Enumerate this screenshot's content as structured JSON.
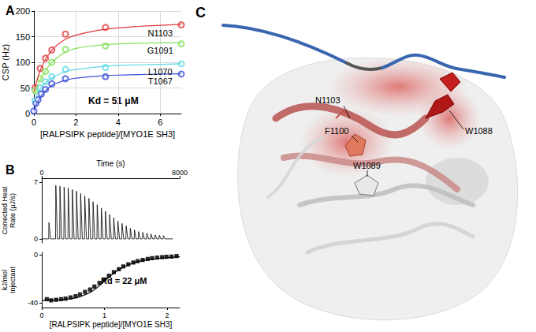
{
  "chart_data": [
    {
      "type": "scatter",
      "title": "A",
      "xlabel": "[RALPSIPK peptide]/[MYO1E SH3]",
      "ylabel": "CSP (Hz)",
      "annotation": "Kd = 51 μM",
      "xlim": [
        0,
        7
      ],
      "xticks": [
        0,
        2,
        4,
        6
      ],
      "ylim": [
        0,
        200
      ],
      "yticks": [
        0,
        50,
        100,
        150,
        200
      ],
      "grid": true,
      "marker": "circle-open",
      "line_style": "solid",
      "series": [
        {
          "name": "N1103",
          "color": "#e0393e",
          "x": [
            0.05,
            0.3,
            0.55,
            0.85,
            1.5,
            3.4,
            7.0
          ],
          "values": [
            50,
            88,
            108,
            124,
            155,
            168,
            173
          ],
          "fit_x": [
            0,
            0.25,
            0.5,
            0.75,
            1,
            1.5,
            2,
            3,
            4,
            5,
            6,
            7
          ],
          "fit_values": [
            42,
            78,
            102,
            118,
            130,
            145,
            153,
            162,
            167,
            170,
            172,
            174
          ]
        },
        {
          "name": "G1091",
          "color": "#86e05c",
          "x": [
            0.05,
            0.3,
            0.55,
            0.85,
            1.5,
            3.4,
            7.0
          ],
          "values": [
            45,
            68,
            82,
            100,
            125,
            132,
            136
          ],
          "fit_x": [
            0,
            0.25,
            0.5,
            0.75,
            1,
            1.5,
            2,
            3,
            4,
            5,
            6,
            7
          ],
          "fit_values": [
            38,
            62,
            80,
            95,
            105,
            120,
            127,
            133,
            136,
            137,
            138,
            138
          ]
        },
        {
          "name": "L1070",
          "color": "#5fd9e6",
          "x": [
            0.05,
            0.3,
            0.55,
            0.85,
            1.5,
            3.4,
            7.0
          ],
          "values": [
            25,
            50,
            62,
            72,
            86,
            90,
            97
          ],
          "fit_x": [
            0,
            0.25,
            0.5,
            0.75,
            1,
            1.5,
            2,
            3,
            4,
            5,
            6,
            7
          ],
          "fit_values": [
            22,
            45,
            58,
            67,
            73,
            82,
            86,
            91,
            94,
            95,
            96,
            97
          ]
        },
        {
          "name": "T1067",
          "color": "#3a4fd6",
          "x": [
            0,
            0.1,
            0.2,
            0.35,
            0.55,
            0.85,
            1.5,
            3.4,
            7.0
          ],
          "values": [
            5,
            20,
            27,
            38,
            47,
            58,
            68,
            72,
            77
          ],
          "fit_x": [
            0,
            0.25,
            0.5,
            0.75,
            1,
            1.5,
            2,
            3,
            4,
            5,
            6,
            7
          ],
          "fit_values": [
            5,
            28,
            42,
            52,
            58,
            65,
            69,
            73,
            75,
            76,
            77,
            77.5
          ]
        }
      ]
    },
    {
      "type": "spike",
      "title": "B",
      "xlabel": "Time (s)",
      "ylabel": "Corrected Heat\nRate (μJ/s)",
      "xlim": [
        0,
        8000
      ],
      "xticks": [
        0,
        8000
      ],
      "ylim": [
        -0.5,
        7.5
      ],
      "yticks": [
        0,
        7
      ],
      "grid": false,
      "color": "#000000",
      "x": [
        400,
        800,
        1040,
        1280,
        1520,
        1760,
        2000,
        2240,
        2480,
        2720,
        2960,
        3200,
        3440,
        3680,
        3920,
        4160,
        4400,
        4640,
        4880,
        5120,
        5360,
        5600,
        5840,
        6080,
        6320,
        6560,
        6800,
        7040
      ],
      "values": [
        2.0,
        6.6,
        6.5,
        6.4,
        6.3,
        6.1,
        5.9,
        5.6,
        5.3,
        5.0,
        4.6,
        4.2,
        3.8,
        3.4,
        3.0,
        2.6,
        2.2,
        1.9,
        1.6,
        1.3,
        1.1,
        0.9,
        0.8,
        0.7,
        0.6,
        0.5,
        0.45,
        0.4
      ]
    },
    {
      "type": "scatter",
      "xlabel": "[RALPSIPK peptide]/[MYO1E SH3]",
      "ylabel": "kJ/mol\nInjectant",
      "annotation": "Kd = 22 μM",
      "xlim": [
        0,
        2.2
      ],
      "xticks": [
        0,
        1,
        2
      ],
      "ylim": [
        -44,
        2
      ],
      "yticks": [
        -40,
        0
      ],
      "grid": false,
      "color": "#000000",
      "marker": "square",
      "line_style": "solid",
      "x": [
        0.08,
        0.15,
        0.23,
        0.31,
        0.38,
        0.46,
        0.54,
        0.61,
        0.69,
        0.77,
        0.84,
        0.92,
        1.0,
        1.07,
        1.15,
        1.23,
        1.3,
        1.38,
        1.46,
        1.53,
        1.61,
        1.69,
        1.76,
        1.84,
        1.92,
        1.99,
        2.07,
        2.15
      ],
      "values": [
        -37,
        -38,
        -37.5,
        -37,
        -36.5,
        -35.5,
        -34.5,
        -33,
        -31,
        -29,
        -26.5,
        -23.5,
        -20.5,
        -17.5,
        -14.5,
        -12,
        -9.8,
        -8,
        -6.5,
        -5.3,
        -4.3,
        -3.5,
        -2.9,
        -2.4,
        -2,
        -1.7,
        -1.5,
        -1
      ],
      "fit_x": [
        0,
        0.2,
        0.4,
        0.6,
        0.8,
        1.0,
        1.2,
        1.4,
        1.6,
        1.8,
        2.0,
        2.2
      ],
      "fit_values": [
        -38,
        -37.8,
        -37,
        -35,
        -30.5,
        -22,
        -13.5,
        -8,
        -5,
        -3.3,
        -2.3,
        -1.7
      ]
    }
  ],
  "panel_c": {
    "title": "C",
    "labels": [
      "N1103",
      "F1100",
      "W1088",
      "W1089"
    ]
  }
}
